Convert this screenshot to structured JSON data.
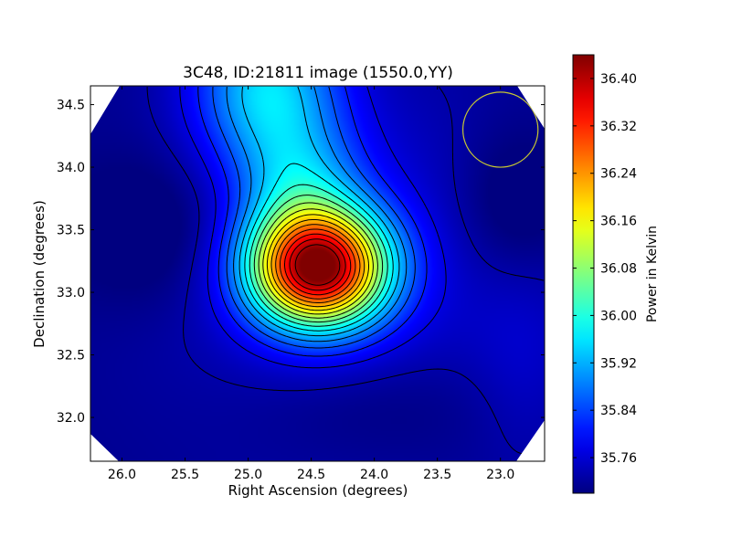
{
  "chart_data": {
    "type": "heatmap",
    "title": "3C48, ID:21811 image (1550.0,YY)",
    "xlabel": "Right Ascension (degrees)",
    "ylabel": "Declination (degrees)",
    "colorbar_label": "Power in Kelvin",
    "xlim": [
      26.25,
      22.65
    ],
    "ylim": [
      31.65,
      34.65
    ],
    "x_ticks": [
      26.0,
      25.5,
      25.0,
      24.5,
      24.0,
      23.5,
      23.0
    ],
    "x_tick_labels": [
      "26.0",
      "25.5",
      "25.0",
      "24.5",
      "24.0",
      "23.5",
      "23.0"
    ],
    "y_ticks": [
      32.0,
      32.5,
      33.0,
      33.5,
      34.0,
      34.5
    ],
    "y_tick_labels": [
      "32.0",
      "32.5",
      "33.0",
      "33.5",
      "34.0",
      "34.5"
    ],
    "colorbar_range": [
      35.7,
      36.44
    ],
    "colorbar_ticks": [
      35.76,
      35.84,
      35.92,
      36.0,
      36.08,
      36.16,
      36.24,
      36.32,
      36.4
    ],
    "colorbar_tick_labels": [
      "35.76",
      "35.84",
      "35.92",
      "36.00",
      "36.08",
      "36.16",
      "36.24",
      "36.32",
      "36.40"
    ],
    "colormap": "jet",
    "peak": {
      "ra": 24.45,
      "dec": 33.2,
      "value": 36.43
    },
    "secondary_maximum": {
      "ra": 24.85,
      "dec": 34.65,
      "value": 35.95
    },
    "beam_circle": {
      "ra": 23.0,
      "dec": 34.3,
      "radius_deg": 0.3,
      "color": "#c8c832"
    },
    "contour_color": "#000000"
  }
}
